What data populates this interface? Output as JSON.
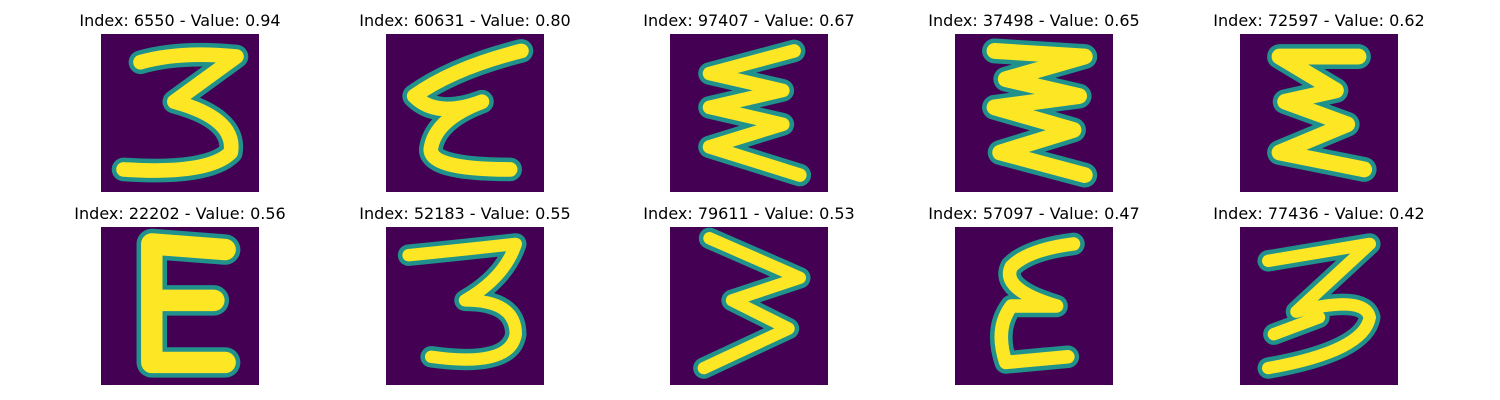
{
  "colors": {
    "background": "#440154",
    "edge": "#21918c",
    "mid": "#5ec962",
    "stroke": "#fde725"
  },
  "panels": [
    {
      "index": "6550",
      "value": "0.94",
      "title": "Index: 6550 - Value: 0.94",
      "glyph": "3"
    },
    {
      "index": "60631",
      "value": "0.80",
      "title": "Index: 60631 - Value: 0.80",
      "glyph": "epsilon"
    },
    {
      "index": "97407",
      "value": "0.67",
      "title": "Index: 97407 - Value: 0.67",
      "glyph": "zigzag-e"
    },
    {
      "index": "37498",
      "value": "0.65",
      "title": "Index: 37498 - Value: 0.65",
      "glyph": "zigzag-e"
    },
    {
      "index": "72597",
      "value": "0.62",
      "title": "Index: 72597 - Value: 0.62",
      "glyph": "epsilon"
    },
    {
      "index": "22202",
      "value": "0.56",
      "title": "Index: 22202 - Value: 0.56",
      "glyph": "E"
    },
    {
      "index": "52183",
      "value": "0.55",
      "title": "Index: 52183 - Value: 0.55",
      "glyph": "3"
    },
    {
      "index": "79611",
      "value": "0.53",
      "title": "Index: 79611 - Value: 0.53",
      "glyph": "3-rotated"
    },
    {
      "index": "57097",
      "value": "0.47",
      "title": "Index: 57097 - Value: 0.47",
      "glyph": "epsilon"
    },
    {
      "index": "77436",
      "value": "0.42",
      "title": "Index: 77436 - Value: 0.42",
      "glyph": "3"
    }
  ]
}
